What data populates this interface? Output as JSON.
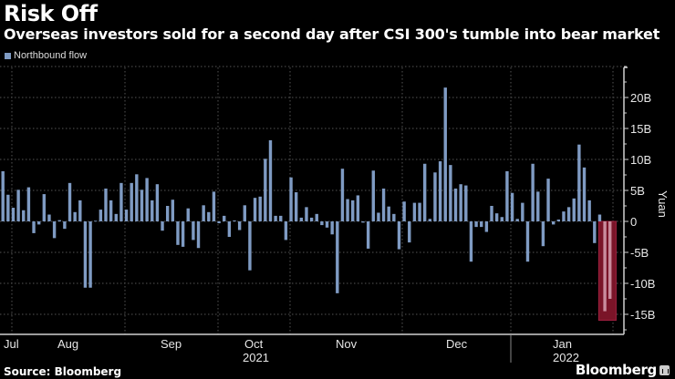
{
  "header": {
    "title": "Risk Off",
    "subtitle": "Overseas investors sold for a second day after CSI 300's tumble into bear market"
  },
  "footer": {
    "source": "Source: Bloomberg",
    "brand": "Bloomberg"
  },
  "colors": {
    "bar": "#7f9bc3",
    "highlight_fill": "#7a1428",
    "highlight_bar": "#c98c9d",
    "grid": "#555555",
    "axis": "#d0d0d0"
  },
  "chart_data": {
    "type": "bar",
    "title": "Risk Off",
    "subtitle": "Overseas investors sold for a second day after CSI 300's tumble into bear market",
    "legend": [
      {
        "name": "Northbound flow",
        "position": "top-left"
      }
    ],
    "xlabel": "",
    "ylabel": "Yuan",
    "y_unit": "B",
    "ylim": [
      -18,
      25
    ],
    "yticks": [
      {
        "value": 20,
        "label": "20B"
      },
      {
        "value": 15,
        "label": "15B"
      },
      {
        "value": 10,
        "label": "10B"
      },
      {
        "value": 5,
        "label": "5B"
      },
      {
        "value": 0,
        "label": "0"
      },
      {
        "value": -5,
        "label": "-5B"
      },
      {
        "value": -10,
        "label": "-10B"
      },
      {
        "value": -15,
        "label": "-15B"
      }
    ],
    "xticks": [
      {
        "label": "Jul",
        "index": 0
      },
      {
        "label": "Aug",
        "index": 16
      },
      {
        "label": "Sep",
        "index": 37
      },
      {
        "label": "Oct",
        "index": 52
      },
      {
        "label": "Nov",
        "index": 66
      },
      {
        "label": "Dec",
        "index": 87
      },
      {
        "label": "Jan",
        "index": 108
      }
    ],
    "year_labels": [
      {
        "label": "2021",
        "under": "Oct"
      },
      {
        "label": "2022",
        "under": "Jan"
      }
    ],
    "grid": true,
    "series": [
      {
        "name": "Northbound flow",
        "values": [
          8.1,
          4.3,
          2.2,
          5.1,
          1.8,
          5.5,
          -1.9,
          -0.5,
          4.4,
          1.1,
          -2.7,
          0.2,
          -1.2,
          6.2,
          1.5,
          3.4,
          -10.7,
          -10.7,
          0.1,
          1.9,
          5.3,
          3.4,
          1.2,
          6.2,
          1.9,
          6.2,
          7.6,
          5.1,
          7.0,
          3.4,
          6.0,
          -1.5,
          2.5,
          3.5,
          -3.8,
          -4.1,
          2.1,
          -3.0,
          -4.3,
          2.6,
          1.5,
          4.8,
          -0.3,
          0.9,
          -2.5,
          0.15,
          -1.4,
          2.6,
          -7.9,
          3.8,
          4.0,
          10.1,
          13.1,
          0.9,
          0.9,
          -3.0,
          7.1,
          4.7,
          0.6,
          2.3,
          0.6,
          1.2,
          -0.6,
          -1.0,
          -2.1,
          -11.6,
          8.5,
          3.6,
          3.4,
          4.2,
          -0.2,
          -4.4,
          8.2,
          1.4,
          5.3,
          2.4,
          1.2,
          -4.5,
          3.2,
          -3.4,
          3.0,
          3.0,
          9.3,
          0.4,
          7.9,
          9.7,
          21.6,
          9.1,
          5.3,
          6.0,
          5.8,
          -6.5,
          -0.9,
          -0.9,
          -1.7,
          2.5,
          1.3,
          0.7,
          8.1,
          4.6,
          0.4,
          3.0,
          -6.5,
          9.3,
          4.8,
          -4.0,
          6.9,
          -0.5,
          0.3,
          1.6,
          2.3,
          3.7,
          12.4,
          8.7,
          3.4,
          -3.5,
          1.1,
          -14.5,
          -12.5
        ]
      }
    ],
    "highlight": {
      "start_index": 117,
      "end_index": 118,
      "description": "last two trading days highlighted in red"
    }
  }
}
